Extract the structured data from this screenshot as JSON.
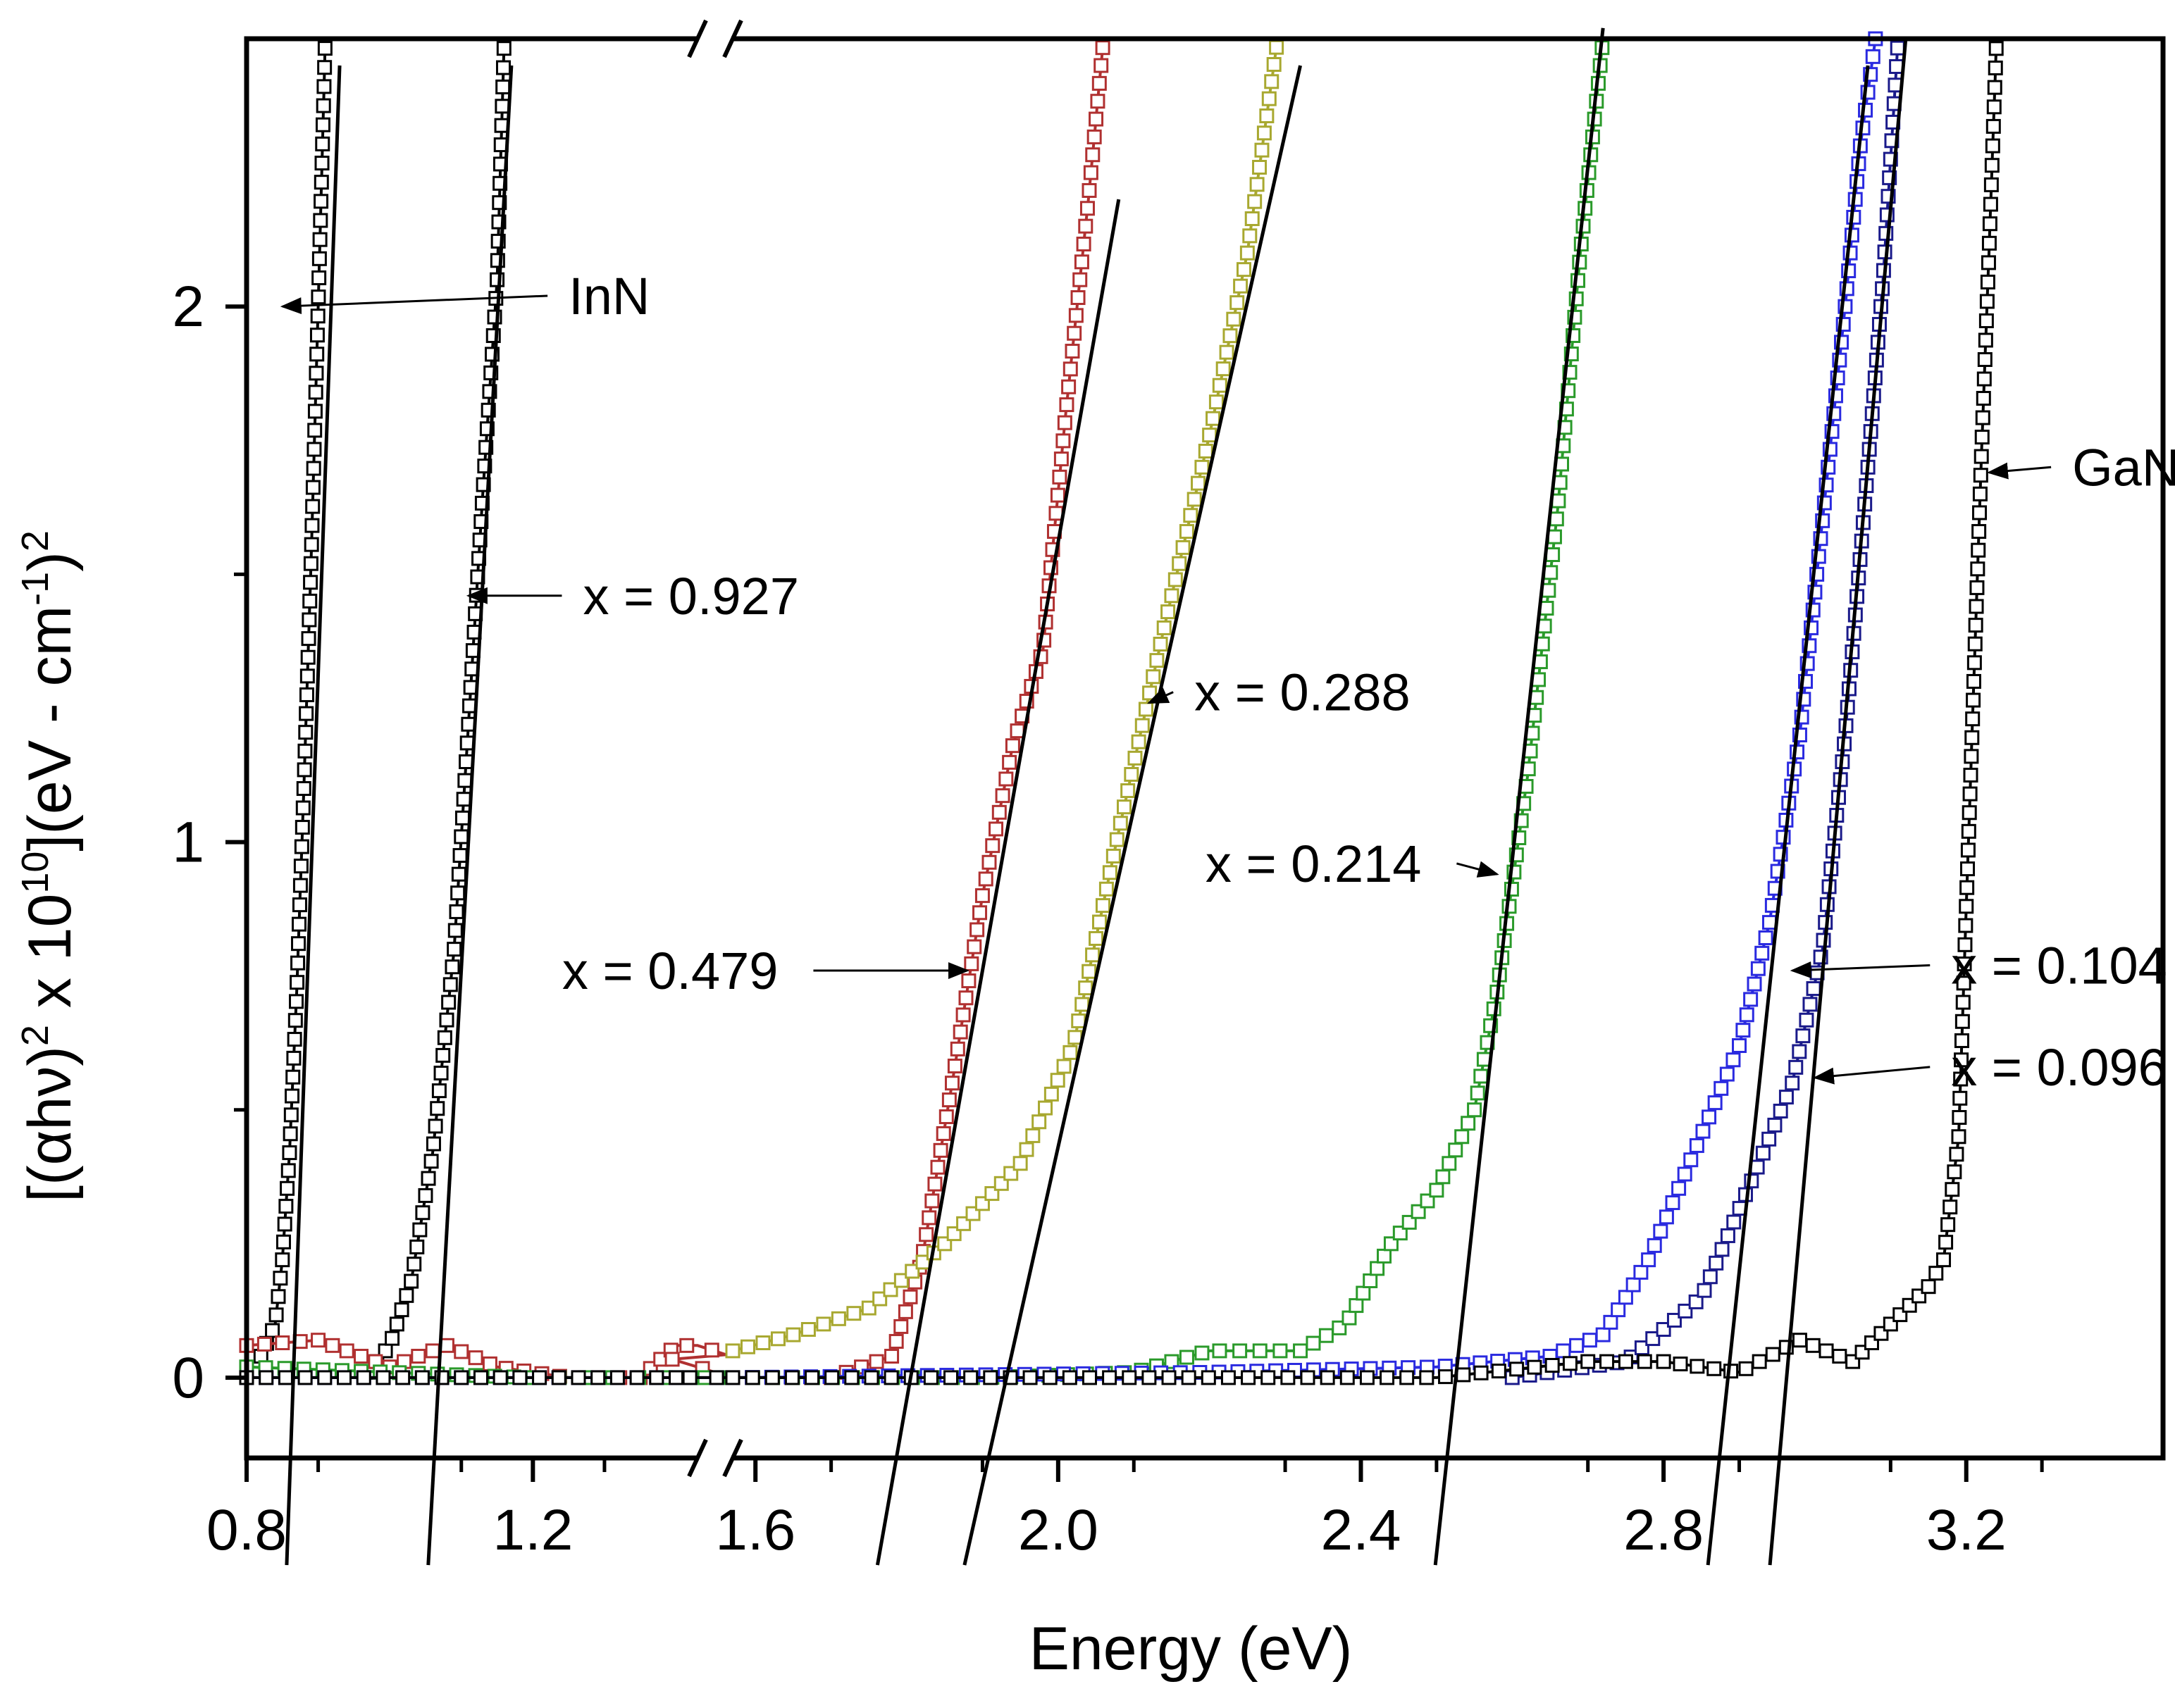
{
  "chart_data": {
    "type": "line",
    "xlabel": "Energy (eV)",
    "ylabel_parts": {
      "a": "[(αhν)",
      "sup1": "2",
      "b": " x 10",
      "sup2": "10",
      "c": "](eV - cm",
      "sup3": "-1",
      "d": ")",
      "sup4": "2"
    },
    "axis_break": "//",
    "xlim_left": [
      0.8,
      1.43
    ],
    "xlim_right": [
      1.57,
      3.46
    ],
    "ylim": [
      -0.15,
      2.5
    ],
    "x_ticks": [
      {
        "label": "0.8",
        "value": 0.8
      },
      {
        "label": "1.2",
        "value": 1.2
      },
      {
        "label": "1.6",
        "value": 1.6
      },
      {
        "label": "2.0",
        "value": 2.0
      },
      {
        "label": "2.4",
        "value": 2.4
      },
      {
        "label": "2.8",
        "value": 2.8
      },
      {
        "label": "3.2",
        "value": 3.2
      }
    ],
    "y_ticks": [
      {
        "label": "0",
        "value": 0
      },
      {
        "label": "1",
        "value": 1
      },
      {
        "label": "2",
        "value": 2
      }
    ],
    "y_minor_ticks": [
      0.5,
      1.5
    ],
    "series": [
      {
        "name": "InN",
        "color": "#000000",
        "bandgap": 0.86,
        "points": [
          [
            0.82,
            0.04
          ],
          [
            0.84,
            0.1
          ],
          [
            0.85,
            0.22
          ],
          [
            0.86,
            0.42
          ],
          [
            0.87,
            0.72
          ],
          [
            0.88,
            1.1
          ],
          [
            0.89,
            1.52
          ],
          [
            0.9,
            2.0
          ],
          [
            0.91,
            2.5
          ]
        ],
        "fit": [
          [
            0.86,
            -0.2
          ],
          [
            0.93,
            2.45
          ]
        ]
      },
      {
        "name": "x = 0.927",
        "color": "#000000",
        "bandgap": 1.07,
        "points": [
          [
            0.97,
            0.01
          ],
          [
            1.0,
            0.06
          ],
          [
            1.03,
            0.18
          ],
          [
            1.06,
            0.42
          ],
          [
            1.09,
            0.8
          ],
          [
            1.11,
            1.22
          ],
          [
            1.13,
            1.65
          ],
          [
            1.15,
            2.05
          ],
          [
            1.16,
            2.5
          ]
        ],
        "fit": [
          [
            1.06,
            -0.2
          ],
          [
            1.17,
            2.45
          ]
        ]
      },
      {
        "name": "x = 0.479",
        "color": "#b03030",
        "bandgap": 1.8,
        "points": [
          [
            0.8,
            0.06
          ],
          [
            0.9,
            0.07
          ],
          [
            1.0,
            0.02
          ],
          [
            1.08,
            0.06
          ],
          [
            1.15,
            0.02
          ],
          [
            1.25,
            0.0
          ],
          [
            1.35,
            0.0
          ],
          [
            1.4,
            0.06
          ],
          [
            1.43,
            0.06
          ],
          [
            1.57,
            0.0
          ],
          [
            1.7,
            0.0
          ],
          [
            1.78,
            0.04
          ],
          [
            1.82,
            0.22
          ],
          [
            1.86,
            0.55
          ],
          [
            1.9,
            0.9
          ],
          [
            1.94,
            1.18
          ],
          [
            1.98,
            1.36
          ],
          [
            2.01,
            1.8
          ],
          [
            2.04,
            2.2
          ],
          [
            2.06,
            2.5
          ]
        ],
        "fit": [
          [
            1.78,
            -0.2
          ],
          [
            2.08,
            2.2
          ]
        ]
      },
      {
        "name": "x = 0.288",
        "color": "#a8a830",
        "bandgap": 1.93,
        "points": [
          [
            1.57,
            0.05
          ],
          [
            1.65,
            0.08
          ],
          [
            1.75,
            0.13
          ],
          [
            1.85,
            0.25
          ],
          [
            1.95,
            0.4
          ],
          [
            2.02,
            0.62
          ],
          [
            2.08,
            1.02
          ],
          [
            2.14,
            1.4
          ],
          [
            2.2,
            1.76
          ],
          [
            2.25,
            2.1
          ],
          [
            2.29,
            2.5
          ]
        ],
        "fit": [
          [
            1.9,
            -0.2
          ],
          [
            2.32,
            2.45
          ]
        ]
      },
      {
        "name": "x = 0.214",
        "color": "#2a9a2a",
        "bandgap": 2.53,
        "points": [
          [
            0.8,
            0.02
          ],
          [
            1.2,
            0.0
          ],
          [
            1.57,
            0.0
          ],
          [
            1.9,
            0.0
          ],
          [
            2.1,
            0.01
          ],
          [
            2.2,
            0.05
          ],
          [
            2.32,
            0.05
          ],
          [
            2.38,
            0.1
          ],
          [
            2.44,
            0.25
          ],
          [
            2.5,
            0.35
          ],
          [
            2.55,
            0.5
          ],
          [
            2.58,
            0.72
          ],
          [
            2.62,
            1.12
          ],
          [
            2.66,
            1.62
          ],
          [
            2.69,
            2.1
          ],
          [
            2.72,
            2.5
          ]
        ],
        "fit": [
          [
            2.51,
            -0.2
          ],
          [
            2.72,
            2.52
          ]
        ]
      },
      {
        "name": "x = 0.104",
        "color": "#2a2ae0",
        "bandgap": 2.89,
        "points": [
          [
            0.8,
            0.0
          ],
          [
            1.4,
            0.0
          ],
          [
            1.57,
            0.0
          ],
          [
            2.2,
            0.01
          ],
          [
            2.5,
            0.02
          ],
          [
            2.65,
            0.04
          ],
          [
            2.72,
            0.08
          ],
          [
            2.78,
            0.22
          ],
          [
            2.84,
            0.42
          ],
          [
            2.9,
            0.62
          ],
          [
            2.94,
            0.85
          ],
          [
            2.98,
            1.2
          ],
          [
            3.01,
            1.6
          ],
          [
            3.04,
            2.0
          ],
          [
            3.06,
            2.3
          ],
          [
            3.08,
            2.5
          ]
        ],
        "fit": [
          [
            2.87,
            -0.2
          ],
          [
            3.07,
            2.45
          ]
        ]
      },
      {
        "name": "x = 0.096",
        "color": "#1a1a8a",
        "bandgap": 2.96,
        "points": [
          [
            2.6,
            0.0
          ],
          [
            2.75,
            0.03
          ],
          [
            2.85,
            0.15
          ],
          [
            2.92,
            0.38
          ],
          [
            2.97,
            0.55
          ],
          [
            3.01,
            0.8
          ],
          [
            3.04,
            1.2
          ],
          [
            3.07,
            1.7
          ],
          [
            3.09,
            2.05
          ],
          [
            3.11,
            2.5
          ]
        ],
        "fit": [
          [
            2.95,
            -0.2
          ],
          [
            3.12,
            2.5
          ]
        ]
      },
      {
        "name": "GaN",
        "color": "#000000",
        "bandgap": 3.19,
        "points": [
          [
            0.8,
            0.0
          ],
          [
            1.4,
            0.0
          ],
          [
            1.57,
            0.0
          ],
          [
            2.5,
            0.0
          ],
          [
            2.7,
            0.03
          ],
          [
            2.8,
            0.03
          ],
          [
            2.9,
            0.01
          ],
          [
            2.98,
            0.07
          ],
          [
            3.05,
            0.03
          ],
          [
            3.1,
            0.1
          ],
          [
            3.15,
            0.17
          ],
          [
            3.17,
            0.22
          ],
          [
            3.19,
            0.45
          ],
          [
            3.2,
            0.88
          ],
          [
            3.21,
            1.3
          ],
          [
            3.22,
            1.72
          ],
          [
            3.23,
            2.1
          ],
          [
            3.24,
            2.5
          ]
        ],
        "fit": []
      }
    ],
    "annotations": [
      {
        "text": "InN",
        "target": [
          0.85,
          2.0
        ],
        "label_at": [
          1.25,
          2.02
        ]
      },
      {
        "text": "x = 0.927",
        "target": [
          1.11,
          1.46
        ],
        "label_at": [
          1.27,
          1.46
        ]
      },
      {
        "text": "x = 0.479",
        "target": [
          1.88,
          0.76
        ],
        "label_at": [
          1.63,
          0.76
        ]
      },
      {
        "text": "x = 0.288",
        "target": [
          2.12,
          1.26
        ],
        "label_at": [
          2.18,
          1.28
        ]
      },
      {
        "text": "x = 0.214",
        "target": [
          2.58,
          0.94
        ],
        "label_at": [
          2.48,
          0.96
        ]
      },
      {
        "text": "x = 0.104",
        "target": [
          2.97,
          0.76
        ],
        "label_at": [
          3.18,
          0.77
        ]
      },
      {
        "text": "x = 0.096",
        "target": [
          3.0,
          0.56
        ],
        "label_at": [
          3.18,
          0.58
        ]
      },
      {
        "text": "GaN",
        "target": [
          3.23,
          1.69
        ],
        "label_at": [
          3.34,
          1.7
        ]
      }
    ]
  }
}
